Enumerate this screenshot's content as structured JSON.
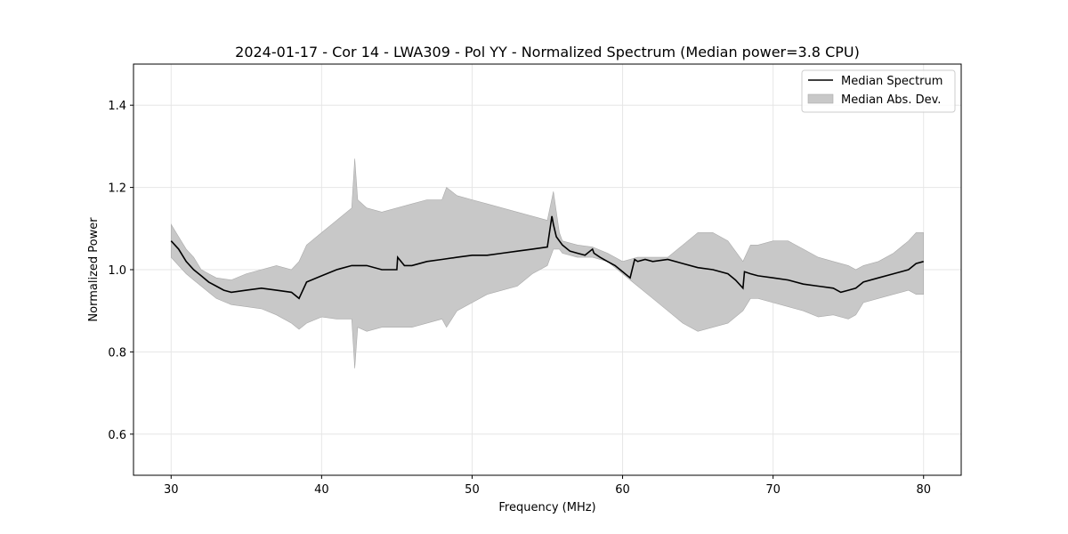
{
  "chart_data": {
    "type": "line",
    "title": "2024-01-17 - Cor 14 - LWA309 - Pol YY - Normalized Spectrum (Median power=3.8 CPU)",
    "xlabel": "Frequency (MHz)",
    "ylabel": "Normalized Power",
    "xlim": [
      27.5,
      82.5
    ],
    "ylim": [
      0.5,
      1.5
    ],
    "xticks": [
      30,
      40,
      50,
      60,
      70,
      80
    ],
    "yticks": [
      0.6,
      0.8,
      1.0,
      1.2,
      1.4
    ],
    "xtick_labels": [
      "30",
      "40",
      "50",
      "60",
      "70",
      "80"
    ],
    "ytick_labels": [
      "0.6",
      "0.8",
      "1.0",
      "1.2",
      "1.4"
    ],
    "grid": true,
    "legend_position": "top-right",
    "series": [
      {
        "name": "Median Spectrum",
        "kind": "line",
        "color": "#000000",
        "x": [
          30,
          30.5,
          31,
          31.5,
          32,
          32.5,
          33,
          33.5,
          34,
          35,
          36,
          37,
          38,
          38.5,
          39,
          40,
          41,
          42,
          43,
          44,
          45,
          45.05,
          45.5,
          46,
          47,
          48,
          49,
          50,
          51,
          52,
          53,
          54,
          55,
          55.3,
          55.4,
          55.6,
          56,
          56.5,
          57,
          57.5,
          58,
          58.1,
          58.5,
          59,
          59.5,
          60,
          60.5,
          60.8,
          61,
          61.5,
          62,
          63,
          64,
          65,
          66,
          67,
          67.5,
          68,
          68.1,
          68.5,
          69,
          70,
          71,
          72,
          73,
          74,
          74.5,
          75,
          75.5,
          76,
          77,
          78,
          79,
          79.5,
          80
        ],
        "values": [
          1.07,
          1.05,
          1.02,
          1.0,
          0.985,
          0.97,
          0.96,
          0.95,
          0.945,
          0.95,
          0.955,
          0.95,
          0.945,
          0.93,
          0.97,
          0.985,
          1.0,
          1.01,
          1.01,
          1.0,
          1.0,
          1.03,
          1.01,
          1.01,
          1.02,
          1.025,
          1.03,
          1.035,
          1.035,
          1.04,
          1.045,
          1.05,
          1.055,
          1.13,
          1.11,
          1.08,
          1.06,
          1.045,
          1.04,
          1.035,
          1.05,
          1.04,
          1.03,
          1.02,
          1.01,
          0.995,
          0.98,
          1.025,
          1.02,
          1.025,
          1.02,
          1.025,
          1.015,
          1.005,
          1.0,
          0.99,
          0.975,
          0.955,
          0.995,
          0.99,
          0.985,
          0.98,
          0.975,
          0.965,
          0.96,
          0.955,
          0.945,
          0.95,
          0.955,
          0.97,
          0.98,
          0.99,
          1.0,
          1.015,
          1.02
        ]
      },
      {
        "name": "Median Abs. Dev.",
        "kind": "band",
        "color": "#c8c8c8",
        "x": [
          30,
          30.5,
          31,
          31.5,
          32,
          32.5,
          33,
          34,
          35,
          36,
          37,
          38,
          38.5,
          39,
          40,
          41,
          42,
          42.2,
          42.4,
          43,
          44,
          45,
          46,
          47,
          48,
          48.3,
          49,
          50,
          51,
          52,
          53,
          54,
          55,
          55.4,
          55.8,
          56,
          57,
          58,
          59,
          60,
          61,
          62,
          63,
          64,
          65,
          66,
          67,
          68,
          68.5,
          69,
          70,
          71,
          72,
          73,
          74,
          75,
          75.5,
          76,
          77,
          78,
          79,
          79.5,
          80
        ],
        "upper": [
          1.11,
          1.08,
          1.05,
          1.03,
          1.0,
          0.99,
          0.98,
          0.975,
          0.99,
          1.0,
          1.01,
          1.0,
          1.02,
          1.06,
          1.09,
          1.12,
          1.15,
          1.27,
          1.17,
          1.15,
          1.14,
          1.15,
          1.16,
          1.17,
          1.17,
          1.2,
          1.18,
          1.17,
          1.16,
          1.15,
          1.14,
          1.13,
          1.12,
          1.19,
          1.09,
          1.07,
          1.06,
          1.055,
          1.04,
          1.02,
          1.03,
          1.03,
          1.03,
          1.06,
          1.09,
          1.09,
          1.07,
          1.02,
          1.06,
          1.06,
          1.07,
          1.07,
          1.05,
          1.03,
          1.02,
          1.01,
          1.0,
          1.01,
          1.02,
          1.04,
          1.07,
          1.09,
          1.09
        ],
        "lower": [
          1.03,
          1.01,
          0.99,
          0.975,
          0.96,
          0.945,
          0.93,
          0.915,
          0.91,
          0.905,
          0.89,
          0.87,
          0.855,
          0.87,
          0.885,
          0.88,
          0.88,
          0.76,
          0.86,
          0.85,
          0.86,
          0.86,
          0.86,
          0.87,
          0.88,
          0.86,
          0.9,
          0.92,
          0.94,
          0.95,
          0.96,
          0.99,
          1.01,
          1.05,
          1.05,
          1.04,
          1.03,
          1.03,
          1.02,
          0.99,
          0.96,
          0.93,
          0.9,
          0.87,
          0.85,
          0.86,
          0.87,
          0.9,
          0.93,
          0.93,
          0.92,
          0.91,
          0.9,
          0.885,
          0.89,
          0.88,
          0.89,
          0.92,
          0.93,
          0.94,
          0.95,
          0.94,
          0.94
        ]
      }
    ]
  }
}
